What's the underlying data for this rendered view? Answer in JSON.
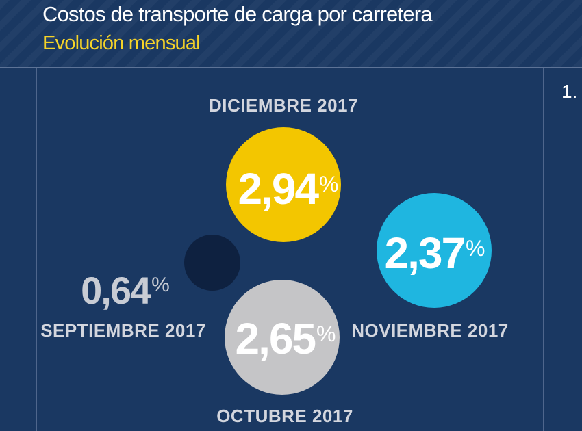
{
  "header": {
    "title": "Costos de transporte de carga por carretera",
    "subtitle": "Evolución mensual"
  },
  "side_number": "1.",
  "chart_data": {
    "type": "bubble",
    "title": "Costos de transporte de carga por carretera",
    "subtitle": "Evolución mensual",
    "unit": "%",
    "series": [
      {
        "label": "SEPTIEMBRE 2017",
        "value_text": "0,64",
        "value": 0.64,
        "color": "#0e2140"
      },
      {
        "label": "OCTUBRE 2017",
        "value_text": "2,65",
        "value": 2.65,
        "color": "#c5c5c7"
      },
      {
        "label": "NOVIEMBRE 2017",
        "value_text": "2,37",
        "value": 2.37,
        "color": "#1fb6e0"
      },
      {
        "label": "DICIEMBRE 2017",
        "value_text": "2,94",
        "value": 2.94,
        "color": "#f3c600"
      }
    ],
    "label_color": "#d3d6de",
    "value_text_color": "#ffffff",
    "outside_value_color": "#c8ccd4"
  }
}
